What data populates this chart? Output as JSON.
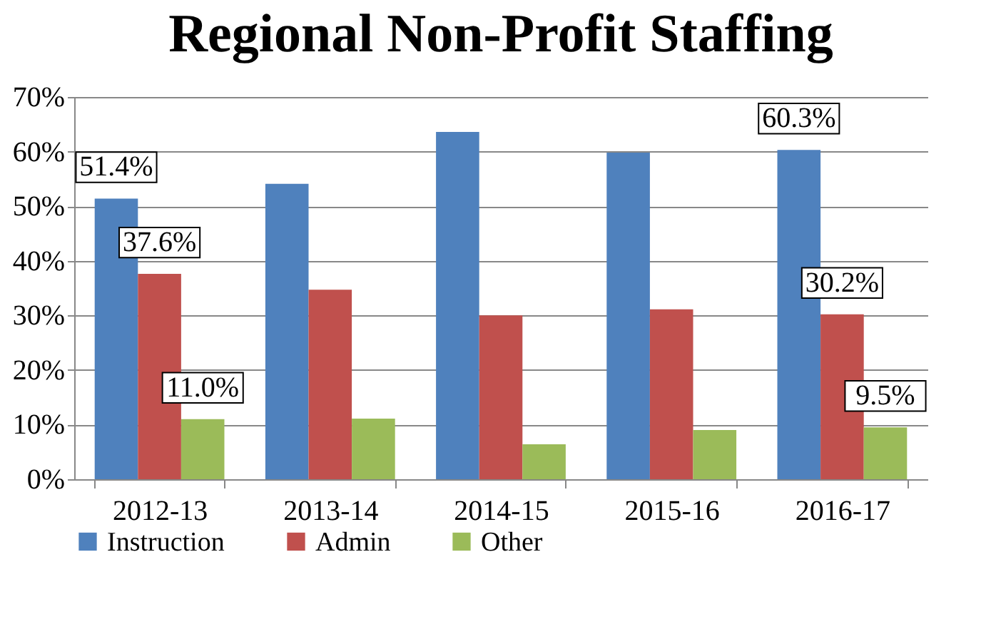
{
  "chart_data": {
    "type": "bar",
    "title": "Regional Non-Profit Staffing",
    "categories": [
      "2012-13",
      "2013-14",
      "2014-15",
      "2015-16",
      "2016-17"
    ],
    "series": [
      {
        "name": "Instruction",
        "color": "#4f81bd",
        "values": [
          51.4,
          54.1,
          63.6,
          59.8,
          60.3
        ],
        "value_labels": [
          "51.4%",
          null,
          null,
          null,
          "60.3%"
        ]
      },
      {
        "name": "Admin",
        "color": "#c0504d",
        "values": [
          37.6,
          34.7,
          30.0,
          31.1,
          30.2
        ],
        "value_labels": [
          "37.6%",
          null,
          null,
          null,
          "30.2%"
        ]
      },
      {
        "name": "Other",
        "color": "#9bbb59",
        "values": [
          11.0,
          11.1,
          6.4,
          9.0,
          9.5
        ],
        "value_labels": [
          "11.0%",
          null,
          null,
          null,
          "9.5%"
        ]
      }
    ],
    "ylim": [
      0,
      70
    ],
    "yticks": [
      {
        "value": 0,
        "label": "0%"
      },
      {
        "value": 10,
        "label": "10%"
      },
      {
        "value": 20,
        "label": "20%"
      },
      {
        "value": 30,
        "label": "30%"
      },
      {
        "value": 40,
        "label": "40%"
      },
      {
        "value": 50,
        "label": "50%"
      },
      {
        "value": 60,
        "label": "60%"
      },
      {
        "value": 70,
        "label": "70%"
      }
    ],
    "grid": "y",
    "legend": "bottom"
  }
}
